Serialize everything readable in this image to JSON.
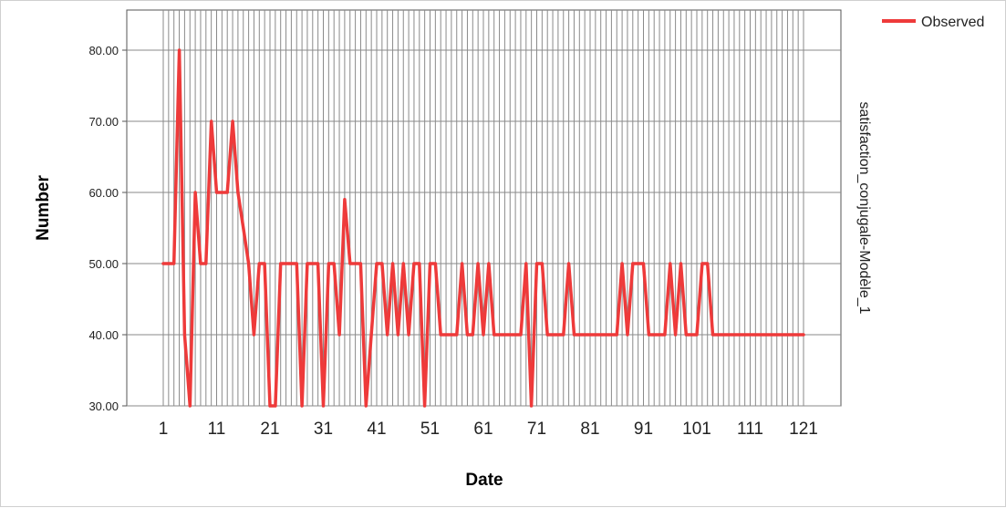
{
  "chart_data": {
    "type": "line",
    "xlabel": "Date",
    "ylabel": "Number",
    "ylim": [
      30,
      85
    ],
    "xlim": [
      1,
      121
    ],
    "y_ticks": [
      30,
      40,
      50,
      60,
      70,
      80
    ],
    "y_tick_labels": [
      "30.00",
      "40.00",
      "50.00",
      "60.00",
      "70.00",
      "80.00"
    ],
    "x_ticks": [
      1,
      11,
      21,
      31,
      41,
      51,
      61,
      71,
      81,
      91,
      101,
      111,
      121
    ],
    "x_tick_labels": [
      "1",
      "11",
      "21",
      "31",
      "41",
      "51",
      "61",
      "71",
      "81",
      "91",
      "101",
      "111",
      "121"
    ],
    "grid": "vertical lines at every date; horizontal lines at y ticks",
    "right_label": "satisfaction_conjugale-Modèle_1",
    "legend": {
      "position": "top-right",
      "entries": [
        "Observed"
      ]
    },
    "series": [
      {
        "name": "Observed",
        "color": "#ee3a3a",
        "x": [
          1,
          2,
          3,
          4,
          5,
          6,
          7,
          8,
          9,
          10,
          11,
          12,
          13,
          14,
          15,
          16,
          17,
          18,
          19,
          20,
          21,
          22,
          23,
          24,
          25,
          26,
          27,
          28,
          29,
          30,
          31,
          32,
          33,
          34,
          35,
          36,
          37,
          38,
          39,
          40,
          41,
          42,
          43,
          44,
          45,
          46,
          47,
          48,
          49,
          50,
          51,
          52,
          53,
          54,
          55,
          56,
          57,
          58,
          59,
          60,
          61,
          62,
          63,
          64,
          65,
          66,
          67,
          68,
          69,
          70,
          71,
          72,
          73,
          74,
          75,
          76,
          77,
          78,
          79,
          80,
          81,
          82,
          83,
          84,
          85,
          86,
          87,
          88,
          89,
          90,
          91,
          92,
          93,
          94,
          95,
          96,
          97,
          98,
          99,
          100,
          101,
          102,
          103,
          104,
          105,
          106,
          107,
          108,
          109,
          110,
          111,
          112,
          113,
          114,
          115,
          116,
          117,
          118,
          119,
          120,
          121
        ],
        "values": [
          50,
          50,
          50,
          80,
          40,
          30,
          60,
          50,
          50,
          70,
          60,
          60,
          60,
          70,
          60,
          55,
          50,
          40,
          50,
          50,
          30,
          30,
          50,
          50,
          50,
          50,
          30,
          50,
          50,
          50,
          30,
          50,
          50,
          40,
          59,
          50,
          50,
          50,
          30,
          40,
          50,
          50,
          40,
          50,
          40,
          50,
          40,
          50,
          50,
          30,
          50,
          50,
          40,
          40,
          40,
          40,
          50,
          40,
          40,
          50,
          40,
          50,
          40,
          40,
          40,
          40,
          40,
          40,
          50,
          30,
          50,
          50,
          40,
          40,
          40,
          40,
          50,
          40,
          40,
          40,
          40,
          40,
          40,
          40,
          40,
          40,
          50,
          40,
          50,
          50,
          50,
          40,
          40,
          40,
          40,
          50,
          40,
          50,
          40,
          40,
          40,
          50,
          50,
          40,
          40,
          40,
          40,
          40,
          40,
          40,
          40,
          40,
          40,
          40,
          40,
          40,
          40,
          40,
          40,
          40,
          40
        ]
      }
    ]
  }
}
